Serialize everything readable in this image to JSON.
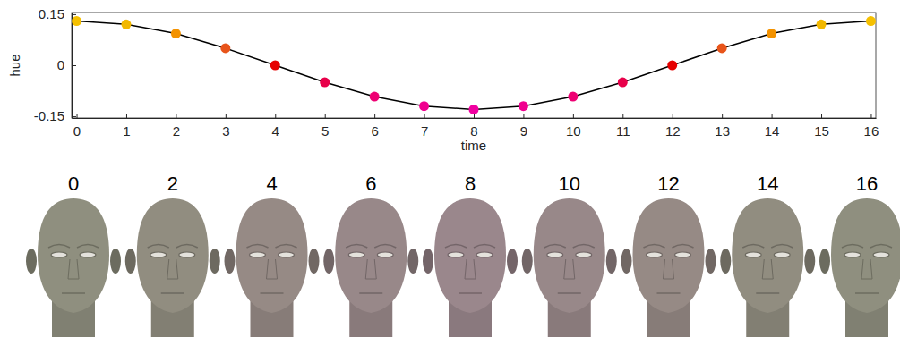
{
  "chart_data": {
    "type": "line",
    "x_label": "time",
    "y_label": "hue",
    "x": [
      0,
      1,
      2,
      3,
      4,
      5,
      6,
      7,
      8,
      9,
      10,
      11,
      12,
      13,
      14,
      15,
      16
    ],
    "series": [
      {
        "color": "#000000",
        "marker": "circle",
        "line_style": "solid",
        "values": [
          0.13,
          0.12,
          0.093,
          0.05,
          0,
          -0.05,
          -0.092,
          -0.12,
          -0.13,
          -0.12,
          -0.092,
          -0.05,
          0,
          0.05,
          0.093,
          0.12,
          0.13
        ],
        "colors": [
          "#f5c000",
          "#f2b800",
          "#f39200",
          "#e8541a",
          "#e60000",
          "#e8004a",
          "#ee0073",
          "#f0008f",
          "#f000a0",
          "#f0008f",
          "#ee0073",
          "#e8004a",
          "#e60000",
          "#e8541a",
          "#f39200",
          "#f2b800",
          "#f5c000"
        ]
      }
    ],
    "xlim": [
      -0.1,
      16.1
    ],
    "ylim": [
      -0.155,
      0.155
    ],
    "xticks": [
      0,
      1,
      2,
      3,
      4,
      5,
      6,
      7,
      8,
      9,
      10,
      11,
      12,
      13,
      14,
      15,
      16
    ],
    "yticks": [
      -0.15,
      0,
      0.15
    ],
    "grid": false
  },
  "face_strip": {
    "labels": [
      0,
      2,
      4,
      6,
      8,
      10,
      12,
      14,
      16
    ],
    "colors": [
      "#8f8f7f",
      "#918d80",
      "#968a85",
      "#988889",
      "#9a878c",
      "#988889",
      "#968a85",
      "#918d80",
      "#8f8f7f"
    ]
  }
}
